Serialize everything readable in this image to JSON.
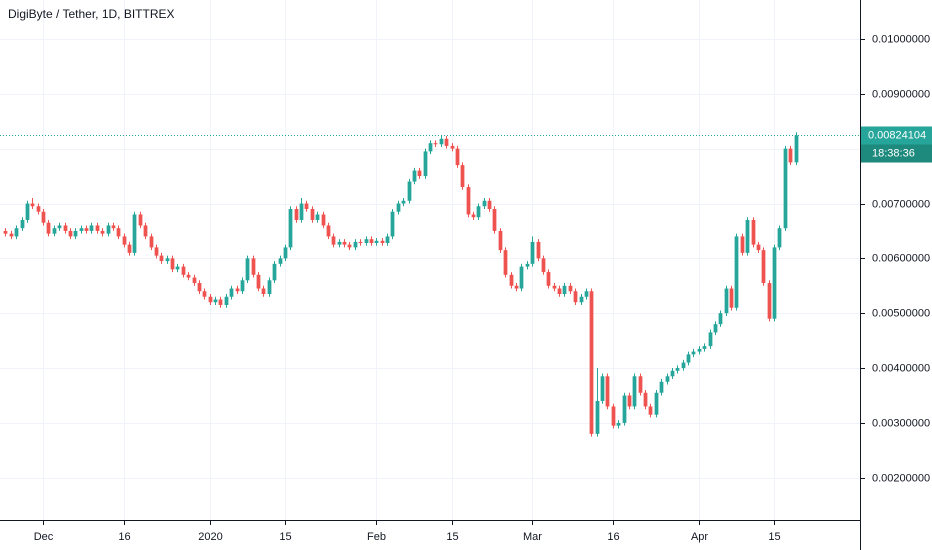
{
  "chart_data": {
    "type": "candlestick",
    "title": "DigiByte / Tether, 1D, BITTREX",
    "x": [
      "2019-11-24",
      "2019-11-25",
      "2019-11-26",
      "2019-11-27",
      "2019-11-28",
      "2019-11-29",
      "2019-11-30",
      "2019-12-01",
      "2019-12-02",
      "2019-12-03",
      "2019-12-04",
      "2019-12-05",
      "2019-12-06",
      "2019-12-07",
      "2019-12-08",
      "2019-12-09",
      "2019-12-10",
      "2019-12-11",
      "2019-12-12",
      "2019-12-13",
      "2019-12-14",
      "2019-12-15",
      "2019-12-16",
      "2019-12-17",
      "2019-12-18",
      "2019-12-19",
      "2019-12-20",
      "2019-12-21",
      "2019-12-22",
      "2019-12-23",
      "2019-12-24",
      "2019-12-25",
      "2019-12-26",
      "2019-12-27",
      "2019-12-28",
      "2019-12-29",
      "2019-12-30",
      "2019-12-31",
      "2020-01-01",
      "2020-01-02",
      "2020-01-03",
      "2020-01-04",
      "2020-01-05",
      "2020-01-06",
      "2020-01-07",
      "2020-01-08",
      "2020-01-09",
      "2020-01-10",
      "2020-01-11",
      "2020-01-12",
      "2020-01-13",
      "2020-01-14",
      "2020-01-15",
      "2020-01-16",
      "2020-01-17",
      "2020-01-18",
      "2020-01-19",
      "2020-01-20",
      "2020-01-21",
      "2020-01-22",
      "2020-01-23",
      "2020-01-24",
      "2020-01-25",
      "2020-01-26",
      "2020-01-27",
      "2020-01-28",
      "2020-01-29",
      "2020-01-30",
      "2020-01-31",
      "2020-02-01",
      "2020-02-02",
      "2020-02-03",
      "2020-02-04",
      "2020-02-05",
      "2020-02-06",
      "2020-02-07",
      "2020-02-08",
      "2020-02-09",
      "2020-02-10",
      "2020-02-11",
      "2020-02-12",
      "2020-02-13",
      "2020-02-14",
      "2020-02-15",
      "2020-02-16",
      "2020-02-17",
      "2020-02-18",
      "2020-02-19",
      "2020-02-20",
      "2020-02-21",
      "2020-02-22",
      "2020-02-23",
      "2020-02-24",
      "2020-02-25",
      "2020-02-26",
      "2020-02-27",
      "2020-02-28",
      "2020-02-29",
      "2020-03-01",
      "2020-03-02",
      "2020-03-03",
      "2020-03-04",
      "2020-03-05",
      "2020-03-06",
      "2020-03-07",
      "2020-03-08",
      "2020-03-09",
      "2020-03-10",
      "2020-03-11",
      "2020-03-12",
      "2020-03-13",
      "2020-03-14",
      "2020-03-15",
      "2020-03-16",
      "2020-03-17",
      "2020-03-18",
      "2020-03-19",
      "2020-03-20",
      "2020-03-21",
      "2020-03-22",
      "2020-03-23",
      "2020-03-24",
      "2020-03-25",
      "2020-03-26",
      "2020-03-27",
      "2020-03-28",
      "2020-03-29",
      "2020-03-30",
      "2020-03-31",
      "2020-04-01",
      "2020-04-02",
      "2020-04-03",
      "2020-04-04",
      "2020-04-05",
      "2020-04-06",
      "2020-04-07",
      "2020-04-08",
      "2020-04-09",
      "2020-04-10",
      "2020-04-11",
      "2020-04-12",
      "2020-04-13",
      "2020-04-14",
      "2020-04-15",
      "2020-04-16",
      "2020-04-17",
      "2020-04-18",
      "2020-04-19"
    ],
    "open": [
      0.0065,
      0.00645,
      0.0064,
      0.00655,
      0.0067,
      0.007,
      0.00695,
      0.00685,
      0.00665,
      0.00645,
      0.00655,
      0.0066,
      0.0065,
      0.0064,
      0.0065,
      0.00655,
      0.0065,
      0.0066,
      0.0065,
      0.00645,
      0.0066,
      0.00655,
      0.0064,
      0.00625,
      0.0061,
      0.0068,
      0.0066,
      0.0064,
      0.0062,
      0.00605,
      0.00595,
      0.006,
      0.0058,
      0.00585,
      0.0057,
      0.00565,
      0.00555,
      0.0054,
      0.0053,
      0.0052,
      0.00525,
      0.00515,
      0.0053,
      0.00545,
      0.0054,
      0.0056,
      0.006,
      0.0057,
      0.00545,
      0.00535,
      0.0056,
      0.0059,
      0.006,
      0.0062,
      0.0069,
      0.0067,
      0.007,
      0.0069,
      0.0067,
      0.0068,
      0.0066,
      0.0064,
      0.00625,
      0.0063,
      0.00625,
      0.0062,
      0.0063,
      0.00628,
      0.00635,
      0.00628,
      0.00632,
      0.00628,
      0.0064,
      0.00685,
      0.007,
      0.00705,
      0.0074,
      0.0076,
      0.0075,
      0.00795,
      0.0081,
      0.00808,
      0.00818,
      0.00805,
      0.008,
      0.0077,
      0.0073,
      0.0068,
      0.00675,
      0.00695,
      0.00705,
      0.0069,
      0.0065,
      0.00615,
      0.0057,
      0.0055,
      0.00545,
      0.00585,
      0.0059,
      0.0063,
      0.006,
      0.00575,
      0.0055,
      0.00545,
      0.00535,
      0.0055,
      0.0054,
      0.0052,
      0.0053,
      0.0054,
      0.0028,
      0.0034,
      0.00385,
      0.0033,
      0.00295,
      0.003,
      0.0035,
      0.0033,
      0.00385,
      0.00355,
      0.0033,
      0.00315,
      0.00355,
      0.00375,
      0.00385,
      0.00395,
      0.004,
      0.0041,
      0.00425,
      0.0043,
      0.00435,
      0.0044,
      0.00465,
      0.0048,
      0.005,
      0.00545,
      0.0051,
      0.0064,
      0.0061,
      0.0067,
      0.00625,
      0.00615,
      0.00555,
      0.0049,
      0.0062,
      0.00655,
      0.008,
      0.00775
    ],
    "high": [
      0.00655,
      0.0065,
      0.0066,
      0.00675,
      0.00705,
      0.0071,
      0.007,
      0.0069,
      0.0067,
      0.0066,
      0.00665,
      0.00665,
      0.00655,
      0.00655,
      0.0066,
      0.0066,
      0.00665,
      0.00665,
      0.00655,
      0.00665,
      0.00665,
      0.0066,
      0.00645,
      0.0063,
      0.00685,
      0.00685,
      0.00665,
      0.00645,
      0.00625,
      0.0061,
      0.00605,
      0.00605,
      0.0059,
      0.0059,
      0.00575,
      0.0057,
      0.0056,
      0.00545,
      0.00535,
      0.0053,
      0.0053,
      0.00535,
      0.0055,
      0.0055,
      0.00565,
      0.00605,
      0.00605,
      0.00575,
      0.0055,
      0.00565,
      0.00595,
      0.00605,
      0.00625,
      0.00695,
      0.00695,
      0.0071,
      0.00705,
      0.00695,
      0.00685,
      0.00685,
      0.00665,
      0.00645,
      0.00635,
      0.00635,
      0.0063,
      0.00635,
      0.00635,
      0.0064,
      0.0064,
      0.00637,
      0.00637,
      0.00645,
      0.0069,
      0.00705,
      0.0071,
      0.00745,
      0.00765,
      0.00765,
      0.008,
      0.00815,
      0.00815,
      0.00825,
      0.00823,
      0.0081,
      0.00805,
      0.00775,
      0.00735,
      0.00685,
      0.007,
      0.0071,
      0.0071,
      0.00695,
      0.00655,
      0.0062,
      0.00575,
      0.00555,
      0.0059,
      0.00595,
      0.0064,
      0.00635,
      0.00605,
      0.0058,
      0.00555,
      0.0055,
      0.00555,
      0.00555,
      0.00545,
      0.00535,
      0.00545,
      0.00545,
      0.004,
      0.0039,
      0.0039,
      0.00335,
      0.00305,
      0.00355,
      0.00355,
      0.0039,
      0.0039,
      0.0036,
      0.00335,
      0.0036,
      0.0038,
      0.0039,
      0.004,
      0.00405,
      0.00415,
      0.0043,
      0.00435,
      0.0044,
      0.00445,
      0.0047,
      0.00485,
      0.00505,
      0.0055,
      0.0055,
      0.00645,
      0.00645,
      0.00675,
      0.00675,
      0.0063,
      0.0062,
      0.0056,
      0.00625,
      0.0066,
      0.00805,
      0.00805,
      0.0083
    ],
    "low": [
      0.0064,
      0.00635,
      0.00635,
      0.0065,
      0.00665,
      0.0069,
      0.0068,
      0.0066,
      0.0064,
      0.0064,
      0.0065,
      0.00645,
      0.00635,
      0.00635,
      0.00645,
      0.00645,
      0.00645,
      0.00645,
      0.0064,
      0.0064,
      0.0065,
      0.00635,
      0.0062,
      0.00605,
      0.00605,
      0.00655,
      0.00635,
      0.00615,
      0.006,
      0.0059,
      0.0059,
      0.00575,
      0.00575,
      0.00565,
      0.0056,
      0.0055,
      0.00535,
      0.00525,
      0.00515,
      0.00515,
      0.0051,
      0.0051,
      0.00525,
      0.00535,
      0.00535,
      0.00555,
      0.00565,
      0.0054,
      0.0053,
      0.0053,
      0.00555,
      0.00585,
      0.00595,
      0.00615,
      0.00665,
      0.00665,
      0.00685,
      0.00665,
      0.00665,
      0.00655,
      0.00635,
      0.0062,
      0.0062,
      0.0062,
      0.00615,
      0.00615,
      0.00623,
      0.00623,
      0.00623,
      0.00623,
      0.00623,
      0.00623,
      0.00635,
      0.0068,
      0.00695,
      0.007,
      0.00735,
      0.00745,
      0.00745,
      0.0079,
      0.00803,
      0.00803,
      0.008,
      0.00795,
      0.00765,
      0.00725,
      0.00675,
      0.0067,
      0.0067,
      0.0069,
      0.00685,
      0.00645,
      0.0061,
      0.00565,
      0.00545,
      0.0054,
      0.0054,
      0.0058,
      0.00585,
      0.00595,
      0.0057,
      0.00545,
      0.0054,
      0.0053,
      0.0053,
      0.00535,
      0.00515,
      0.00515,
      0.00525,
      0.00275,
      0.00275,
      0.00335,
      0.00325,
      0.0029,
      0.0029,
      0.00295,
      0.00325,
      0.00325,
      0.0035,
      0.00325,
      0.0031,
      0.0031,
      0.0035,
      0.0037,
      0.0038,
      0.0039,
      0.00395,
      0.00405,
      0.0042,
      0.00425,
      0.0043,
      0.00435,
      0.0046,
      0.00475,
      0.00495,
      0.00505,
      0.00505,
      0.00605,
      0.00605,
      0.0062,
      0.0061,
      0.0055,
      0.00485,
      0.00485,
      0.00615,
      0.0065,
      0.0077,
      0.0077
    ],
    "close": [
      0.00645,
      0.0064,
      0.00655,
      0.0067,
      0.007,
      0.00695,
      0.00685,
      0.00665,
      0.00645,
      0.00655,
      0.0066,
      0.0065,
      0.0064,
      0.0065,
      0.00655,
      0.0065,
      0.0066,
      0.0065,
      0.00645,
      0.0066,
      0.00655,
      0.0064,
      0.00625,
      0.0061,
      0.0068,
      0.0066,
      0.0064,
      0.0062,
      0.00605,
      0.00595,
      0.006,
      0.0058,
      0.00585,
      0.0057,
      0.00565,
      0.00555,
      0.0054,
      0.0053,
      0.0052,
      0.00525,
      0.00515,
      0.0053,
      0.00545,
      0.0054,
      0.0056,
      0.006,
      0.0057,
      0.00545,
      0.00535,
      0.0056,
      0.0059,
      0.006,
      0.0062,
      0.0069,
      0.0067,
      0.007,
      0.0069,
      0.0067,
      0.0068,
      0.0066,
      0.0064,
      0.00625,
      0.0063,
      0.00625,
      0.0062,
      0.0063,
      0.00628,
      0.00635,
      0.00628,
      0.00632,
      0.00628,
      0.0064,
      0.00685,
      0.007,
      0.00705,
      0.0074,
      0.0076,
      0.0075,
      0.00795,
      0.0081,
      0.00808,
      0.00818,
      0.00805,
      0.008,
      0.0077,
      0.0073,
      0.0068,
      0.00675,
      0.00695,
      0.00705,
      0.0069,
      0.0065,
      0.00615,
      0.0057,
      0.0055,
      0.00545,
      0.00585,
      0.0059,
      0.0063,
      0.006,
      0.00575,
      0.0055,
      0.00545,
      0.00535,
      0.0055,
      0.0054,
      0.0052,
      0.0053,
      0.0054,
      0.0028,
      0.0034,
      0.00385,
      0.0033,
      0.00295,
      0.003,
      0.0035,
      0.0033,
      0.00385,
      0.00355,
      0.0033,
      0.00315,
      0.00355,
      0.00375,
      0.00385,
      0.00395,
      0.004,
      0.0041,
      0.00425,
      0.0043,
      0.00435,
      0.0044,
      0.00465,
      0.0048,
      0.005,
      0.00545,
      0.0051,
      0.0064,
      0.0061,
      0.0067,
      0.00625,
      0.00615,
      0.00555,
      0.0049,
      0.0062,
      0.00655,
      0.008,
      0.00775,
      0.00824104
    ],
    "up_color": "#26a69a",
    "down_color": "#ef5350",
    "xlim": [
      "2019-11-23",
      "2020-05-01"
    ],
    "xticks": [
      {
        "value": "2019-12-01",
        "label": "Dec"
      },
      {
        "value": "2019-12-16",
        "label": "16"
      },
      {
        "value": "2020-01-01",
        "label": "2020"
      },
      {
        "value": "2020-01-15",
        "label": "15"
      },
      {
        "value": "2020-02-01",
        "label": "Feb"
      },
      {
        "value": "2020-02-15",
        "label": "15"
      },
      {
        "value": "2020-03-01",
        "label": "Mar"
      },
      {
        "value": "2020-03-16",
        "label": "16"
      },
      {
        "value": "2020-04-01",
        "label": "Apr"
      },
      {
        "value": "2020-04-15",
        "label": "15"
      }
    ],
    "ylim": [
      0.00123,
      0.01071
    ],
    "yticks": [
      {
        "value": 0.002,
        "label": "0.00200000"
      },
      {
        "value": 0.003,
        "label": "0.00300000"
      },
      {
        "value": 0.004,
        "label": "0.00400000"
      },
      {
        "value": 0.005,
        "label": "0.00500000"
      },
      {
        "value": 0.006,
        "label": "0.00600000"
      },
      {
        "value": 0.007,
        "label": "0.00700000"
      },
      {
        "value": 0.008,
        "label": "0.00800000"
      },
      {
        "value": 0.009,
        "label": "0.00900000"
      },
      {
        "value": 0.01,
        "label": "0.01000000"
      }
    ],
    "grid": true,
    "last_price": {
      "value": 0.00824104,
      "label": "0.00824104"
    },
    "countdown": "18:38:36"
  }
}
